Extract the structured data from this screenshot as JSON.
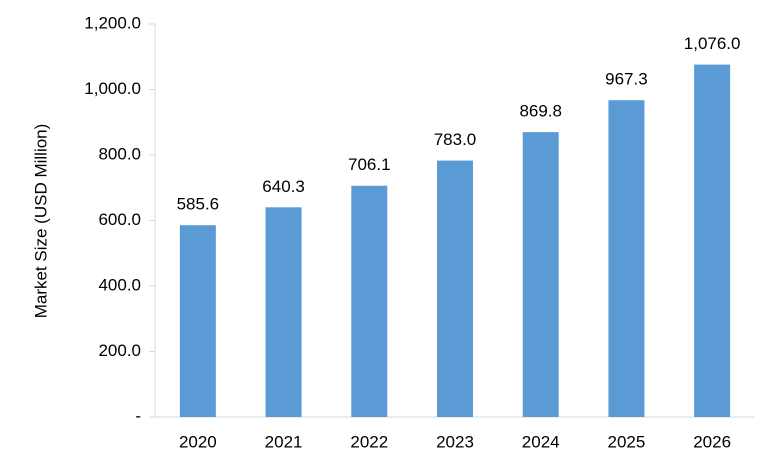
{
  "chart_data": {
    "type": "bar",
    "y_label": "Market Size (USD Million)",
    "categories": [
      "2020",
      "2021",
      "2022",
      "2023",
      "2024",
      "2025",
      "2026"
    ],
    "values": [
      585.6,
      640.3,
      706.1,
      783.0,
      869.8,
      967.3,
      1076.0
    ],
    "value_labels": [
      "585.6",
      "640.3",
      "706.1",
      "783.0",
      "869.8",
      "967.3",
      "1,076.0"
    ],
    "color": "#5b9bd5",
    "ylim": [
      0,
      1200
    ],
    "yticks": [
      {
        "value": 0,
        "label": "-"
      },
      {
        "value": 200,
        "label": "200.0"
      },
      {
        "value": 400,
        "label": "400.0"
      },
      {
        "value": 600,
        "label": "600.0"
      },
      {
        "value": 800,
        "label": "800.0"
      },
      {
        "value": 1000,
        "label": "1,000.0"
      },
      {
        "value": 1200,
        "label": "1,200.0"
      }
    ],
    "grid": false
  }
}
